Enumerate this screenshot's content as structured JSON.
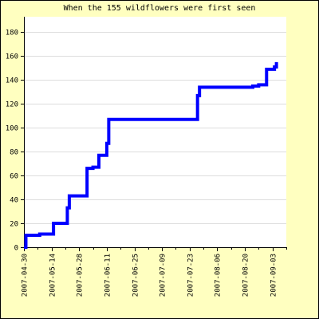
{
  "chart_data": {
    "type": "line",
    "title": "When the 155 wildflowers were first seen",
    "xlabel": "",
    "ylabel": "",
    "x_tick_labels": [
      "2007-04-30",
      "2007-05-14",
      "2007-05-28",
      "2007-06-11",
      "2007-06-25",
      "2007-07-09",
      "2007-07-23",
      "2007-08-06",
      "2007-08-20",
      "2007-09-03"
    ],
    "y_tick_labels": [
      "0",
      "20",
      "40",
      "60",
      "80",
      "100",
      "120",
      "140",
      "160",
      "180"
    ],
    "y_ticks": [
      0,
      20,
      40,
      60,
      80,
      100,
      120,
      140,
      160,
      180
    ],
    "ylim": [
      0,
      193
    ],
    "xlim": [
      "2007-04-30",
      "2007-09-10"
    ],
    "grid": "horizontal",
    "step": "post",
    "series": [
      {
        "color": "#0000ff",
        "x": [
          "2007-04-30",
          "2007-05-01",
          "2007-05-08",
          "2007-05-15",
          "2007-05-22",
          "2007-05-23",
          "2007-06-01",
          "2007-06-04",
          "2007-06-07",
          "2007-06-11",
          "2007-06-12",
          "2007-07-27",
          "2007-07-28",
          "2007-08-24",
          "2007-08-27",
          "2007-08-31",
          "2007-09-04",
          "2007-09-05"
        ],
        "y": [
          0,
          10,
          11,
          20,
          33,
          43,
          66,
          67,
          77,
          87,
          107,
          127,
          134,
          135,
          136,
          149,
          151,
          155
        ]
      }
    ],
    "colors": {
      "background": "#ffffc0",
      "plot_background": "#ffffff",
      "grid": "#dddddd",
      "line": "#0000ff"
    }
  }
}
